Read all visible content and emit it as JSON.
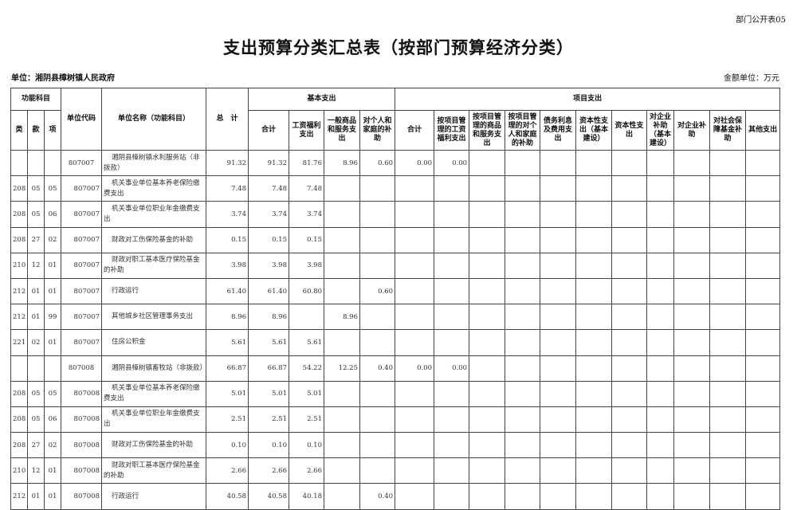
{
  "form_tag": "部门公开表05",
  "title": "支出预算分类汇总表（按部门预算经济分类）",
  "unit_label": "单位：湘阴县樟树镇人民政府",
  "money_unit": "金额单位：万元",
  "headers": {
    "func": "功能科目",
    "lei": "类",
    "kuan": "款",
    "xiang": "项",
    "code": "单位代码",
    "name": "单位名称（功能科目）",
    "total": "总　计",
    "basic": "基本支出",
    "project": "项目支出",
    "basic_cols": [
      "合计",
      "工资福利支出",
      "一般商品和服务支出",
      "对个人和家庭的补助"
    ],
    "project_cols": [
      "合计",
      "按项目管理的工资福利支出",
      "按项目管理的商品和服务支出",
      "按项目管理的对个人和家庭的补助",
      "债务利息及费用支出",
      "资本性支出（基本建设）",
      "资本性支出",
      "对企业补助（基本建设）",
      "对企业补助",
      "对社会保障基金补助",
      "其他支出"
    ]
  },
  "rows": [
    {
      "lei": "",
      "kuan": "",
      "xiang": "",
      "code": "807007",
      "name": "湘阴县樟树镇水利服务站（非拨款）",
      "unit": true,
      "total": "91.32",
      "b_sum": "91.32",
      "b_wage": "81.76",
      "b_goods": "8.96",
      "b_person": "0.60",
      "p_sum": "0.00",
      "p_wage": "0.00"
    },
    {
      "lei": "208",
      "kuan": "05",
      "xiang": "05",
      "code": "807007",
      "name": "机关事业单位基本养老保险缴费支出",
      "total": "7.48",
      "b_sum": "7.48",
      "b_wage": "7.48",
      "b_goods": "",
      "b_person": "",
      "p_sum": "",
      "p_wage": ""
    },
    {
      "lei": "208",
      "kuan": "05",
      "xiang": "06",
      "code": "807007",
      "name": "机关事业单位职业年金缴费支出",
      "total": "3.74",
      "b_sum": "3.74",
      "b_wage": "3.74",
      "b_goods": "",
      "b_person": "",
      "p_sum": "",
      "p_wage": ""
    },
    {
      "lei": "208",
      "kuan": "27",
      "xiang": "02",
      "code": "807007",
      "name": "财政对工伤保险基金的补助",
      "total": "0.15",
      "b_sum": "0.15",
      "b_wage": "0.15",
      "b_goods": "",
      "b_person": "",
      "p_sum": "",
      "p_wage": ""
    },
    {
      "lei": "210",
      "kuan": "12",
      "xiang": "01",
      "code": "807007",
      "name": "财政对职工基本医疗保险基金的补助",
      "total": "3.98",
      "b_sum": "3.98",
      "b_wage": "3.98",
      "b_goods": "",
      "b_person": "",
      "p_sum": "",
      "p_wage": ""
    },
    {
      "lei": "212",
      "kuan": "01",
      "xiang": "01",
      "code": "807007",
      "name": "行政运行",
      "total": "61.40",
      "b_sum": "61.40",
      "b_wage": "60.80",
      "b_goods": "",
      "b_person": "0.60",
      "p_sum": "",
      "p_wage": ""
    },
    {
      "lei": "212",
      "kuan": "01",
      "xiang": "99",
      "code": "807007",
      "name": "其他城乡社区管理事务支出",
      "total": "8.96",
      "b_sum": "8.96",
      "b_wage": "",
      "b_goods": "8.96",
      "b_person": "",
      "p_sum": "",
      "p_wage": ""
    },
    {
      "lei": "221",
      "kuan": "02",
      "xiang": "01",
      "code": "807007",
      "name": "住房公积金",
      "total": "5.61",
      "b_sum": "5.61",
      "b_wage": "5.61",
      "b_goods": "",
      "b_person": "",
      "p_sum": "",
      "p_wage": ""
    },
    {
      "lei": "",
      "kuan": "",
      "xiang": "",
      "code": "807008",
      "name": "湘阴县樟树镇畜牧站（非拨款）",
      "unit": true,
      "total": "66.87",
      "b_sum": "66.87",
      "b_wage": "54.22",
      "b_goods": "12.25",
      "b_person": "0.40",
      "p_sum": "0.00",
      "p_wage": "0.00"
    },
    {
      "lei": "208",
      "kuan": "05",
      "xiang": "05",
      "code": "807008",
      "name": "机关事业单位基本养老保险缴费支出",
      "total": "5.01",
      "b_sum": "5.01",
      "b_wage": "5.01",
      "b_goods": "",
      "b_person": "",
      "p_sum": "",
      "p_wage": ""
    },
    {
      "lei": "208",
      "kuan": "05",
      "xiang": "06",
      "code": "807008",
      "name": "机关事业单位职业年金缴费支出",
      "total": "2.51",
      "b_sum": "2.51",
      "b_wage": "2.51",
      "b_goods": "",
      "b_person": "",
      "p_sum": "",
      "p_wage": ""
    },
    {
      "lei": "208",
      "kuan": "27",
      "xiang": "02",
      "code": "807008",
      "name": "财政对工伤保险基金的补助",
      "total": "0.10",
      "b_sum": "0.10",
      "b_wage": "0.10",
      "b_goods": "",
      "b_person": "",
      "p_sum": "",
      "p_wage": ""
    },
    {
      "lei": "210",
      "kuan": "12",
      "xiang": "01",
      "code": "807008",
      "name": "财政对职工基本医疗保险基金的补助",
      "total": "2.66",
      "b_sum": "2.66",
      "b_wage": "2.66",
      "b_goods": "",
      "b_person": "",
      "p_sum": "",
      "p_wage": ""
    },
    {
      "lei": "212",
      "kuan": "01",
      "xiang": "01",
      "code": "807008",
      "name": "行政运行",
      "total": "40.58",
      "b_sum": "40.58",
      "b_wage": "40.18",
      "b_goods": "",
      "b_person": "0.40",
      "p_sum": "",
      "p_wage": ""
    }
  ]
}
